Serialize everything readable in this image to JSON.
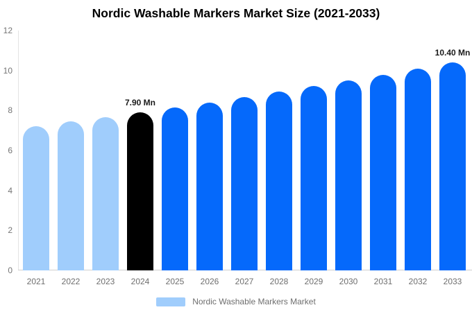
{
  "chart_data": {
    "type": "bar",
    "title": "Nordic Washable Markers Market Size (2021-2033)",
    "categories": [
      "2021",
      "2022",
      "2023",
      "2024",
      "2025",
      "2026",
      "2027",
      "2028",
      "2029",
      "2030",
      "2031",
      "2032",
      "2033"
    ],
    "values": [
      7.2,
      7.45,
      7.66,
      7.9,
      8.15,
      8.4,
      8.66,
      8.93,
      9.21,
      9.49,
      9.79,
      10.09,
      10.4
    ],
    "unit": "Mn",
    "bar_colors": [
      "#A0CDFC",
      "#A0CDFC",
      "#A0CDFC",
      "#000000",
      "#0569FB",
      "#0569FB",
      "#0569FB",
      "#0569FB",
      "#0569FB",
      "#0569FB",
      "#0569FB",
      "#0569FB",
      "#0569FB"
    ],
    "annotations": [
      {
        "category": "2024",
        "text": "7.90 Mn"
      },
      {
        "category": "2033",
        "text": "10.40 Mn"
      }
    ],
    "ylim": [
      0,
      12
    ],
    "yticks": [
      0,
      2,
      4,
      6,
      8,
      10,
      12
    ],
    "grid": false,
    "legend_position": "bottom",
    "legend": [
      {
        "label": "Nordic Washable Markers Market",
        "color": "#A0CDFC"
      }
    ],
    "colors": {
      "historical_bar": "#A0CDFC",
      "base_year_bar": "#000000",
      "forecast_bar": "#0569FB",
      "axis_line": "#d9d9d9",
      "tick_text": "#757575",
      "annotation_text": "#1a1a1a",
      "title_text": "#000000"
    }
  }
}
